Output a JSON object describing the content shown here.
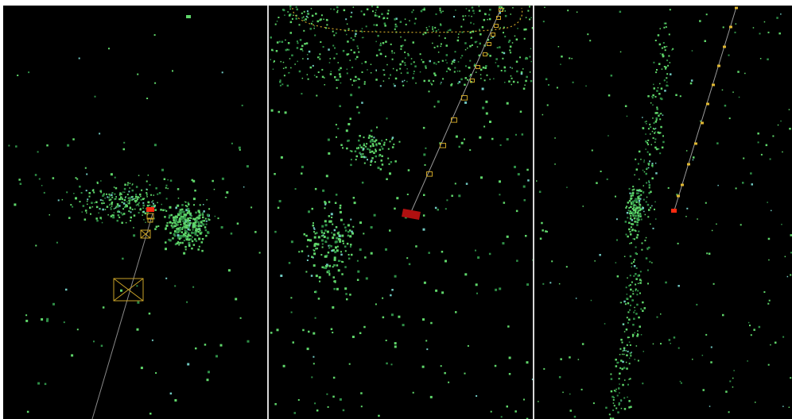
{
  "scene": {
    "colors": {
      "background": "#000000",
      "divider": "#d8d8d8",
      "point_bright": "#5fd66a",
      "point_dim": "#2f8f47",
      "point_cyan": "#6fc8c0",
      "trajectory_line": "#9a9a9a",
      "camera_frustum": "#c9a227",
      "current_camera": "#ff2a10",
      "current_camera_dark": "#b01010",
      "camera_marker": "#e0b830"
    },
    "viewports": [
      {
        "name": "perspective-view",
        "icon": "point-cloud-icon"
      },
      {
        "name": "top-view",
        "icon": "point-cloud-icon"
      },
      {
        "name": "side-view",
        "icon": "point-cloud-icon"
      }
    ]
  }
}
